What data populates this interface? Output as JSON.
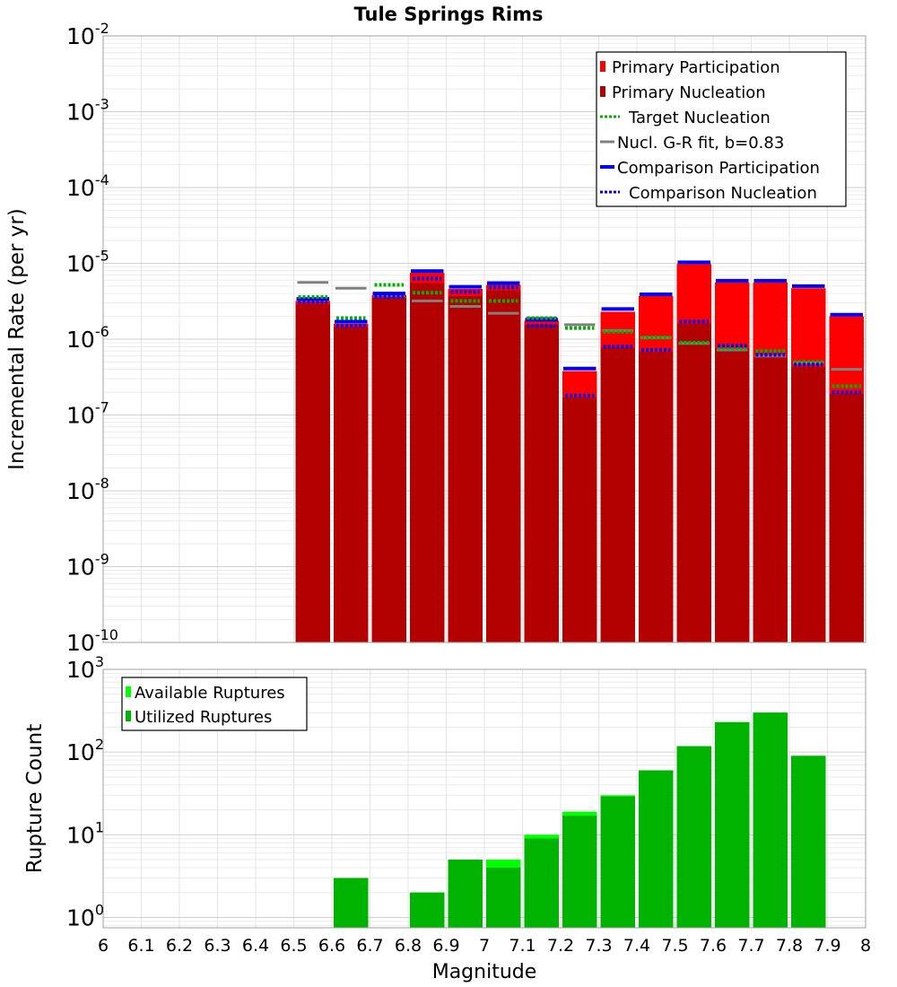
{
  "chart_data": [
    {
      "type": "bar",
      "title": "Tule Springs Rims",
      "ylabel": "Incremental Rate (per yr)",
      "xlabel": "",
      "xlim": [
        6,
        8
      ],
      "ylim": [
        1e-10,
        0.01
      ],
      "yscale": "log",
      "y_tick_labels": [
        {
          "base": "10",
          "exp": "-10"
        },
        {
          "base": "10",
          "exp": "-9"
        },
        {
          "base": "10",
          "exp": "-8"
        },
        {
          "base": "10",
          "exp": "-7"
        },
        {
          "base": "10",
          "exp": "-6"
        },
        {
          "base": "10",
          "exp": "-5"
        },
        {
          "base": "10",
          "exp": "-4"
        },
        {
          "base": "10",
          "exp": "-3"
        },
        {
          "base": "10",
          "exp": "-2"
        }
      ],
      "grid": true,
      "legend_position": "top-right",
      "bin_centers": [
        6.55,
        6.65,
        6.75,
        6.85,
        6.95,
        7.05,
        7.15,
        7.25,
        7.35,
        7.45,
        7.55,
        7.65,
        7.75,
        7.85,
        7.95
      ],
      "series": [
        {
          "name": "Primary Participation",
          "color": "#ff0000",
          "style": "bar",
          "values": [
            3.2e-06,
            1.6e-06,
            3.8e-06,
            7.5e-06,
            4.6e-06,
            5.2e-06,
            1.75e-06,
            3.8e-07,
            2.3e-06,
            3.7e-06,
            9.8e-06,
            5.6e-06,
            5.6e-06,
            4.7e-06,
            2e-06
          ]
        },
        {
          "name": "Primary Nucleation",
          "color": "#b30000",
          "style": "bar",
          "values": [
            2.9e-06,
            1.45e-06,
            3.5e-06,
            5.5e-06,
            3.7e-06,
            4.4e-06,
            1.55e-06,
            1.7e-07,
            7.7e-07,
            6.8e-07,
            1.6e-06,
            7.6e-07,
            5.7e-07,
            4.3e-07,
            1.9e-07
          ]
        },
        {
          "name": "Target Nucleation",
          "color": "#00b300",
          "style": "dotted",
          "values": [
            3.6e-06,
            1.9e-06,
            5.2e-06,
            4.1e-06,
            3.2e-06,
            3.2e-06,
            1.9e-06,
            1.4e-06,
            1.25e-06,
            1.05e-06,
            9e-07,
            7.5e-07,
            7e-07,
            5e-07,
            2.4e-07
          ]
        },
        {
          "name": "Nucl. G-R fit, b=0.83",
          "color": "#808080",
          "style": "solid",
          "values": [
            5.6e-06,
            4.7e-06,
            3.8e-06,
            3.2e-06,
            2.7e-06,
            2.2e-06,
            1.9e-06,
            1.55e-06,
            1.3e-06,
            1.05e-06,
            8.8e-07,
            7.2e-07,
            6e-07,
            4.9e-07,
            4e-07
          ]
        },
        {
          "name": "Comparison Participation",
          "color": "#0000ff",
          "style": "solid",
          "values": [
            3.4e-06,
            1.7e-06,
            4e-06,
            7.9e-06,
            4.9e-06,
            5.5e-06,
            1.8e-06,
            4.1e-07,
            2.5e-06,
            3.9e-06,
            1.03e-05,
            5.9e-06,
            5.9e-06,
            5e-06,
            2.1e-06
          ]
        },
        {
          "name": "Comparison Nucleation",
          "color": "#0000ff",
          "style": "dotted",
          "values": [
            3.1e-06,
            1.5e-06,
            3.6e-06,
            6.3e-06,
            4.2e-06,
            4.8e-06,
            1.5e-06,
            1.8e-07,
            8e-07,
            7.2e-07,
            1.7e-06,
            8.2e-07,
            6.2e-07,
            4.6e-07,
            2e-07
          ]
        }
      ]
    },
    {
      "type": "bar",
      "title": "",
      "ylabel": "Rupture Count",
      "xlabel": "Magnitude",
      "xlim": [
        6,
        8
      ],
      "ylim": [
        0.75,
        1000
      ],
      "yscale": "log",
      "y_tick_labels": [
        {
          "base": "10",
          "exp": "0"
        },
        {
          "base": "10",
          "exp": "1"
        },
        {
          "base": "10",
          "exp": "2"
        },
        {
          "base": "10",
          "exp": "3"
        }
      ],
      "x_tick_labels": [
        "6",
        "6.1",
        "6.2",
        "6.3",
        "6.4",
        "6.5",
        "6.6",
        "6.7",
        "6.8",
        "6.9",
        "7",
        "7.1",
        "7.2",
        "7.3",
        "7.4",
        "7.5",
        "7.6",
        "7.7",
        "7.8",
        "7.9",
        "8"
      ],
      "grid": true,
      "legend_position": "top-left",
      "bin_centers": [
        6.65,
        6.85,
        6.95,
        7.05,
        7.15,
        7.25,
        7.35,
        7.45,
        7.55,
        7.65,
        7.75,
        7.85
      ],
      "series": [
        {
          "name": "Available Ruptures",
          "color": "#00ff00",
          "values": [
            3,
            2,
            5,
            5,
            10,
            19,
            30,
            60,
            118,
            230,
            300,
            90
          ]
        },
        {
          "name": "Utilized Ruptures",
          "color": "#00b300",
          "values": [
            3,
            2,
            5,
            4,
            9,
            17,
            29,
            60,
            118,
            230,
            300,
            90
          ]
        }
      ]
    }
  ]
}
